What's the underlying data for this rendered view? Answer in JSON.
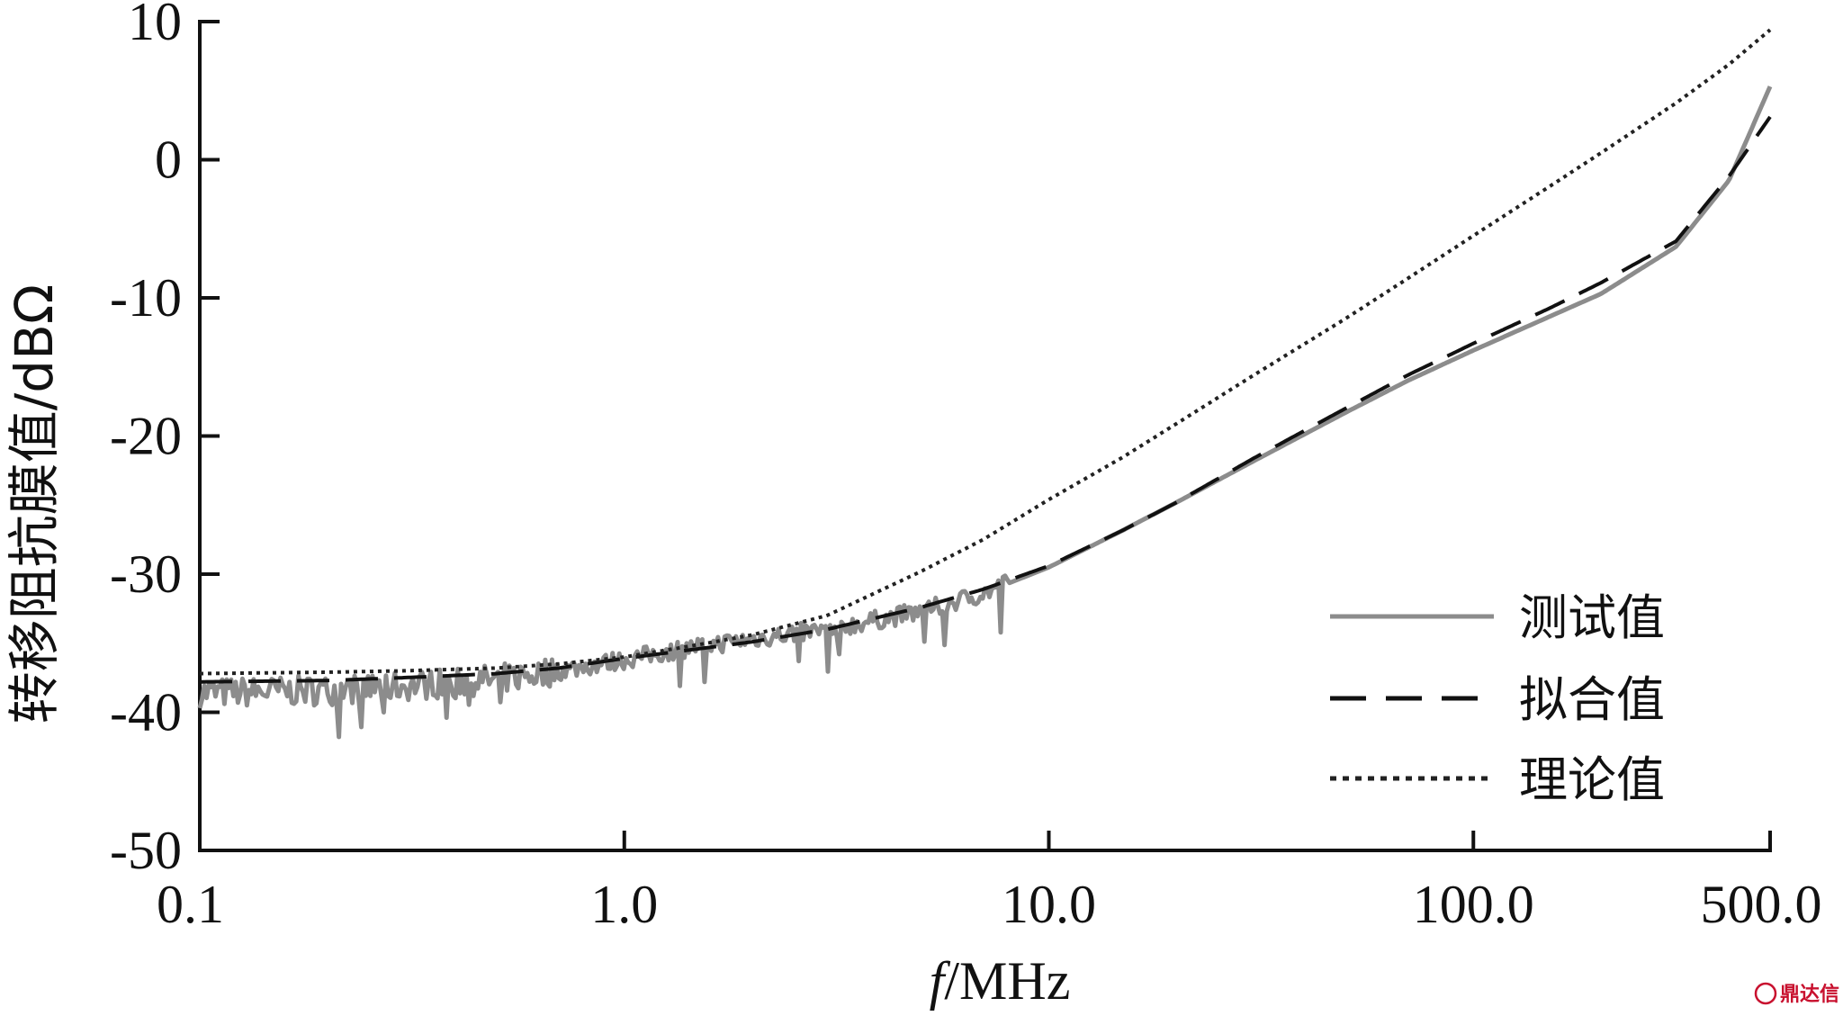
{
  "chart_data": {
    "type": "line",
    "title": "",
    "xlabel_italic": "f",
    "xlabel_rest": "/MHz",
    "ylabel": "转移阻抗膜值/dBΩ",
    "x_scale": "log",
    "xlim": [
      0.1,
      500.0
    ],
    "ylim": [
      -50,
      10
    ],
    "x_ticks": [
      0.1,
      1.0,
      10.0,
      100.0,
      500.0
    ],
    "x_tick_labels": [
      "0.1",
      "1.0",
      "10.0",
      "100.0",
      "500.0"
    ],
    "y_ticks": [
      10,
      0,
      -10,
      -20,
      -30,
      -40,
      -50
    ],
    "y_tick_labels": [
      "10",
      "0",
      "-10",
      "-20",
      "-30",
      "-40",
      "-50"
    ],
    "grid": false,
    "legend_position": "bottom-right",
    "series": [
      {
        "name": "测试值",
        "style": "solid",
        "color": "#8c8c8c",
        "noisy_below_mhz": 8,
        "x": [
          0.1,
          0.2,
          0.3,
          0.5,
          0.7,
          1.0,
          1.5,
          2.0,
          3.0,
          5.0,
          7.0,
          10.0,
          15.0,
          20.0,
          30.0,
          50.0,
          70.0,
          100.0,
          150.0,
          200.0,
          300.0,
          400.0,
          500.0
        ],
        "y": [
          -38.6,
          -38.4,
          -38.1,
          -37.6,
          -37.0,
          -36.2,
          -35.2,
          -34.7,
          -34.0,
          -32.7,
          -31.4,
          -29.5,
          -26.8,
          -24.8,
          -21.9,
          -18.3,
          -16.0,
          -13.8,
          -11.4,
          -9.7,
          -6.3,
          -1.5,
          5.3
        ]
      },
      {
        "name": "拟合值",
        "style": "dashed",
        "color": "#111111",
        "x": [
          0.1,
          0.2,
          0.3,
          0.5,
          0.7,
          1.0,
          1.5,
          2.0,
          3.0,
          5.0,
          7.0,
          10.0,
          15.0,
          20.0,
          30.0,
          50.0,
          70.0,
          100.0,
          150.0,
          200.0,
          300.0,
          400.0,
          500.0
        ],
        "y": [
          -37.8,
          -37.7,
          -37.5,
          -37.2,
          -36.8,
          -36.1,
          -35.4,
          -34.9,
          -34.0,
          -32.4,
          -31.1,
          -29.4,
          -26.8,
          -24.8,
          -21.7,
          -18.0,
          -15.6,
          -13.3,
          -10.8,
          -8.9,
          -5.9,
          -1.2,
          3.1
        ]
      },
      {
        "name": "理论值",
        "style": "dotted",
        "color": "#222222",
        "x": [
          0.1,
          0.2,
          0.3,
          0.5,
          0.7,
          1.0,
          1.5,
          2.0,
          3.0,
          5.0,
          7.0,
          10.0,
          15.0,
          20.0,
          30.0,
          50.0,
          70.0,
          100.0,
          150.0,
          200.0,
          300.0,
          400.0,
          500.0
        ],
        "y": [
          -37.2,
          -37.1,
          -37.0,
          -36.8,
          -36.5,
          -36.0,
          -35.1,
          -34.4,
          -33.0,
          -29.8,
          -27.5,
          -24.6,
          -21.5,
          -19.1,
          -15.7,
          -11.5,
          -8.6,
          -5.5,
          -2.0,
          0.5,
          4.1,
          6.9,
          9.4
        ]
      }
    ]
  },
  "watermark": "鼎达信",
  "colors": {
    "axis": "#111111",
    "watermark": "#c8102e"
  }
}
